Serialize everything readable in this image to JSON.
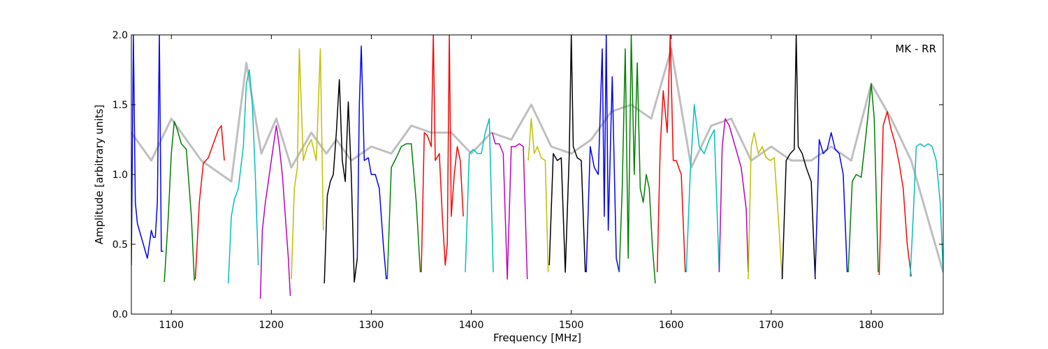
{
  "chart_data": {
    "type": "line",
    "title": "",
    "annotation": "MK - RR",
    "xlabel": "Frequency [MHz]",
    "ylabel": "Amplitude [arbitrary units]",
    "xlim": [
      1060,
      1872
    ],
    "ylim": [
      0.0,
      2.0
    ],
    "xticks": [
      1100,
      1200,
      1300,
      1400,
      1500,
      1600,
      1700,
      1800
    ],
    "yticks": [
      0.0,
      0.5,
      1.0,
      1.5,
      2.0
    ],
    "ytick_labels": [
      "0.0",
      "0.5",
      "1.0",
      "1.5",
      "2.0"
    ],
    "grid": false,
    "colors": {
      "blue": "#0000ff",
      "green": "#008000",
      "red": "#ff0000",
      "cyan": "#00bfbf",
      "magenta": "#bf00bf",
      "yellow": "#bfbf00",
      "black": "#000000",
      "gray": "#bfbfbf"
    },
    "series": [
      {
        "color": "gray",
        "width": 3,
        "x": [
          1060,
          1080,
          1100,
          1130,
          1160,
          1175,
          1190,
          1205,
          1220,
          1240,
          1255,
          1265,
          1280,
          1300,
          1320,
          1340,
          1360,
          1380,
          1400,
          1420,
          1440,
          1460,
          1480,
          1500,
          1520,
          1540,
          1560,
          1580,
          1600,
          1620,
          1640,
          1660,
          1680,
          1700,
          1720,
          1740,
          1760,
          1780,
          1800,
          1820,
          1840,
          1872
        ],
        "y": [
          1.3,
          1.1,
          1.4,
          1.1,
          0.95,
          1.8,
          1.15,
          1.4,
          1.05,
          1.3,
          1.15,
          1.25,
          1.1,
          1.2,
          1.15,
          1.35,
          1.3,
          1.3,
          1.15,
          1.3,
          1.25,
          1.5,
          1.2,
          1.15,
          1.25,
          1.45,
          1.5,
          1.4,
          1.9,
          1.05,
          1.35,
          1.4,
          1.1,
          1.2,
          1.1,
          1.1,
          1.2,
          1.1,
          1.65,
          1.4,
          1.1,
          0.3
        ]
      },
      {
        "color": "blue",
        "x": [
          1060,
          1062,
          1064,
          1066,
          1068,
          1070,
          1072,
          1074,
          1076,
          1078,
          1080,
          1082,
          1084,
          1086,
          1088,
          1090,
          1092
        ],
        "y": [
          0.35,
          2.0,
          0.8,
          0.65,
          0.6,
          0.55,
          0.5,
          0.45,
          0.4,
          0.5,
          0.6,
          0.55,
          0.55,
          0.8,
          2.0,
          0.45,
          0.45
        ]
      },
      {
        "color": "green",
        "x": [
          1093,
          1097,
          1100,
          1103,
          1106,
          1110,
          1115,
          1120,
          1123
        ],
        "y": [
          0.23,
          0.7,
          1.15,
          1.38,
          1.32,
          1.22,
          1.18,
          0.7,
          0.24
        ]
      },
      {
        "color": "red",
        "x": [
          1124,
          1128,
          1132,
          1137,
          1142,
          1147,
          1150,
          1153
        ],
        "y": [
          0.25,
          0.8,
          1.08,
          1.12,
          1.22,
          1.32,
          1.35,
          1.1
        ]
      },
      {
        "color": "cyan",
        "x": [
          1157,
          1160,
          1163,
          1167,
          1172,
          1175,
          1178,
          1181,
          1184,
          1187
        ],
        "y": [
          0.22,
          0.7,
          0.82,
          0.9,
          1.2,
          1.65,
          1.75,
          1.5,
          1.0,
          0.35
        ]
      },
      {
        "color": "magenta",
        "x": [
          1189,
          1191,
          1194,
          1197,
          1200,
          1203,
          1205,
          1208,
          1211,
          1214,
          1217,
          1219
        ],
        "y": [
          0.11,
          0.6,
          0.8,
          0.95,
          1.1,
          1.25,
          1.35,
          1.2,
          1.0,
          0.7,
          0.4,
          0.13
        ]
      },
      {
        "color": "yellow",
        "x": [
          1220,
          1223,
          1226,
          1228,
          1232,
          1236,
          1240,
          1245,
          1249,
          1252
        ],
        "y": [
          0.25,
          0.9,
          1.05,
          1.9,
          1.1,
          1.2,
          1.25,
          1.1,
          1.9,
          0.6
        ]
      },
      {
        "color": "black",
        "x": [
          1253,
          1256,
          1259,
          1262,
          1265,
          1268,
          1271,
          1274,
          1277,
          1280,
          1283,
          1286
        ],
        "y": [
          0.22,
          0.85,
          0.95,
          1.0,
          1.3,
          1.68,
          1.1,
          0.95,
          1.52,
          1.0,
          0.23,
          0.4
        ]
      },
      {
        "color": "blue",
        "x": [
          1286,
          1288,
          1290,
          1293,
          1297,
          1300,
          1304,
          1308,
          1312,
          1315
        ],
        "y": [
          0.4,
          1.5,
          1.92,
          1.1,
          1.12,
          1.0,
          1.0,
          0.9,
          0.5,
          0.25
        ]
      },
      {
        "color": "green",
        "x": [
          1316,
          1320,
          1325,
          1330,
          1335,
          1340,
          1345,
          1349
        ],
        "y": [
          0.25,
          1.05,
          1.12,
          1.2,
          1.22,
          1.22,
          0.8,
          0.3
        ]
      },
      {
        "color": "red",
        "x": [
          1350,
          1353,
          1356,
          1360,
          1362,
          1364,
          1368,
          1371,
          1374,
          1376,
          1378,
          1380,
          1383,
          1386,
          1389,
          1392
        ],
        "y": [
          0.3,
          1.3,
          1.28,
          1.2,
          2.0,
          1.1,
          1.15,
          0.7,
          0.35,
          0.5,
          2.0,
          0.7,
          1.0,
          1.2,
          1.1,
          0.7
        ]
      },
      {
        "color": "cyan",
        "x": [
          1394,
          1398,
          1402,
          1406,
          1410,
          1414,
          1418,
          1422
        ],
        "y": [
          0.3,
          1.15,
          1.18,
          1.15,
          1.15,
          1.3,
          1.4,
          0.3
        ]
      },
      {
        "color": "magenta",
        "x": [
          1421,
          1424,
          1428,
          1432,
          1436,
          1440,
          1444,
          1448,
          1452,
          1456
        ],
        "y": [
          1.3,
          1.22,
          1.22,
          1.15,
          0.25,
          1.2,
          1.2,
          1.22,
          1.2,
          0.25
        ]
      },
      {
        "color": "yellow",
        "x": [
          1457,
          1460,
          1463,
          1466,
          1470,
          1474,
          1477
        ],
        "y": [
          1.1,
          1.4,
          1.15,
          1.2,
          1.12,
          1.1,
          0.3
        ]
      },
      {
        "color": "black",
        "x": [
          1478,
          1482,
          1486,
          1490,
          1494,
          1498,
          1500,
          1502,
          1506,
          1510,
          1514
        ],
        "y": [
          0.35,
          1.15,
          1.1,
          1.12,
          0.3,
          1.15,
          2.0,
          1.2,
          1.12,
          1.1,
          0.3
        ]
      },
      {
        "color": "blue",
        "x": [
          1515,
          1519,
          1523,
          1527,
          1531,
          1533,
          1535,
          1537,
          1541,
          1545,
          1548
        ],
        "y": [
          0.3,
          1.2,
          1.05,
          1.0,
          1.9,
          0.7,
          2.0,
          0.6,
          1.7,
          0.4,
          0.3
        ]
      },
      {
        "color": "green",
        "x": [
          1548,
          1551,
          1554,
          1557,
          1560,
          1563,
          1566,
          1569,
          1572,
          1575,
          1578,
          1581,
          1584
        ],
        "y": [
          0.3,
          0.9,
          1.9,
          0.4,
          2.0,
          1.0,
          1.8,
          0.9,
          0.8,
          1.0,
          0.9,
          0.5,
          0.22
        ]
      },
      {
        "color": "red",
        "x": [
          1586,
          1589,
          1592,
          1596,
          1599,
          1602,
          1605,
          1610,
          1614
        ],
        "y": [
          0.3,
          1.2,
          1.6,
          1.3,
          2.0,
          1.1,
          1.1,
          1.0,
          0.3
        ]
      },
      {
        "color": "cyan",
        "x": [
          1615,
          1619,
          1623,
          1628,
          1633,
          1638,
          1643,
          1648
        ],
        "y": [
          0.3,
          1.0,
          1.5,
          1.2,
          1.15,
          1.25,
          1.32,
          0.3
        ]
      },
      {
        "color": "magenta",
        "x": [
          1648,
          1651,
          1654,
          1658,
          1662,
          1666,
          1670,
          1675,
          1677
        ],
        "y": [
          0.3,
          1.2,
          1.4,
          1.35,
          1.25,
          1.15,
          1.05,
          0.75,
          0.3
        ]
      },
      {
        "color": "yellow",
        "x": [
          1677,
          1680,
          1683,
          1687,
          1691,
          1695,
          1699,
          1703,
          1707,
          1711
        ],
        "y": [
          0.25,
          1.2,
          1.3,
          1.15,
          1.2,
          1.12,
          1.1,
          1.12,
          0.7,
          0.25
        ]
      },
      {
        "color": "black",
        "x": [
          1711,
          1715,
          1719,
          1723,
          1725,
          1727,
          1731,
          1735,
          1740,
          1744
        ],
        "y": [
          0.25,
          1.1,
          1.15,
          1.18,
          2.0,
          1.2,
          1.15,
          1.05,
          0.95,
          0.25
        ]
      },
      {
        "color": "blue",
        "x": [
          1744,
          1748,
          1752,
          1756,
          1760,
          1764,
          1768,
          1772,
          1776
        ],
        "y": [
          0.28,
          1.25,
          1.15,
          1.18,
          1.3,
          1.18,
          1.15,
          1.0,
          0.3
        ]
      },
      {
        "color": "green",
        "x": [
          1777,
          1781,
          1785,
          1790,
          1795,
          1800,
          1803,
          1807
        ],
        "y": [
          0.3,
          0.95,
          1.0,
          0.98,
          1.3,
          1.65,
          1.4,
          0.3
        ]
      },
      {
        "color": "red",
        "x": [
          1808,
          1812,
          1816,
          1820,
          1824,
          1828,
          1832,
          1836,
          1840
        ],
        "y": [
          0.28,
          1.35,
          1.45,
          1.32,
          1.22,
          1.08,
          0.9,
          0.5,
          0.27
        ]
      },
      {
        "color": "cyan",
        "x": [
          1839,
          1842,
          1845,
          1849,
          1853,
          1857,
          1861,
          1865,
          1869,
          1872
        ],
        "y": [
          0.27,
          0.7,
          1.2,
          1.22,
          1.2,
          1.22,
          1.2,
          1.1,
          0.8,
          0.3
        ]
      }
    ]
  }
}
